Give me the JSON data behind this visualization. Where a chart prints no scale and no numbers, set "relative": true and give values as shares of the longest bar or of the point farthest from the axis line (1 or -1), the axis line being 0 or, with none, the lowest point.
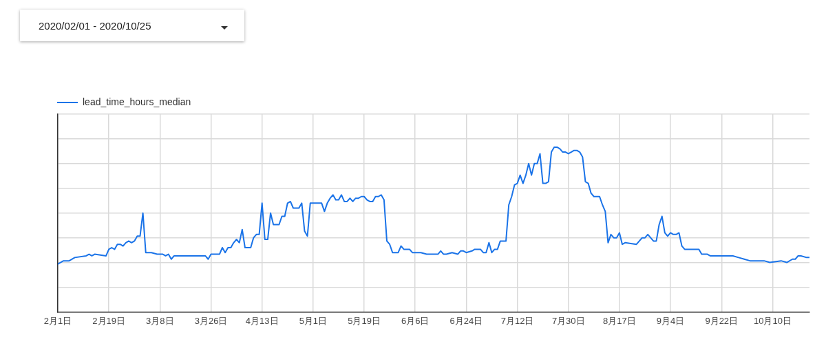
{
  "chart_data": {
    "type": "line",
    "annotations": [
      "2020/02/01 - 2020/10/25"
    ],
    "relative": true,
    "grid": true,
    "legend": "top left",
    "xlim": [
      "2020-02-01",
      "2020-10-23"
    ],
    "xticks": [
      {
        "value": "2020-02-01",
        "label": "2月1日"
      },
      {
        "value": "2020-02-19",
        "label": "2月19日"
      },
      {
        "value": "2020-03-08",
        "label": "3月8日"
      },
      {
        "value": "2020-03-26",
        "label": "3月26日"
      },
      {
        "value": "2020-04-13",
        "label": "4月13日"
      },
      {
        "value": "2020-05-01",
        "label": "5月1日"
      },
      {
        "value": "2020-05-19",
        "label": "5月19日"
      },
      {
        "value": "2020-06-06",
        "label": "6月6日"
      },
      {
        "value": "2020-06-24",
        "label": "6月24日"
      },
      {
        "value": "2020-07-12",
        "label": "7月12日"
      },
      {
        "value": "2020-07-30",
        "label": "7月30日"
      },
      {
        "value": "2020-08-17",
        "label": "8月17日"
      },
      {
        "value": "2020-09-04",
        "label": "9月4日"
      },
      {
        "value": "2020-09-22",
        "label": "9月22日"
      },
      {
        "value": "2020-10-10",
        "label": "10月10日"
      }
    ],
    "x": [
      "2020-02-01",
      "2020-02-03",
      "2020-02-05",
      "2020-02-07",
      "2020-02-11",
      "2020-02-12",
      "2020-02-13",
      "2020-02-14",
      "2020-02-18",
      "2020-02-19",
      "2020-02-20",
      "2020-02-21",
      "2020-02-22",
      "2020-02-23",
      "2020-02-24",
      "2020-02-25",
      "2020-02-26",
      "2020-02-27",
      "2020-02-28",
      "2020-02-29",
      "2020-03-01",
      "2020-03-02",
      "2020-03-03",
      "2020-03-05",
      "2020-03-07",
      "2020-03-09",
      "2020-03-10",
      "2020-03-11",
      "2020-03-12",
      "2020-03-13",
      "2020-03-17",
      "2020-03-21",
      "2020-03-24",
      "2020-03-25",
      "2020-03-26",
      "2020-03-29",
      "2020-03-30",
      "2020-03-31",
      "2020-04-01",
      "2020-04-02",
      "2020-04-03",
      "2020-04-04",
      "2020-04-05",
      "2020-04-06",
      "2020-04-07",
      "2020-04-09",
      "2020-04-10",
      "2020-04-11",
      "2020-04-12",
      "2020-04-13",
      "2020-04-14",
      "2020-04-15",
      "2020-04-16",
      "2020-04-17",
      "2020-04-19",
      "2020-04-20",
      "2020-04-21",
      "2020-04-22",
      "2020-04-23",
      "2020-04-24",
      "2020-04-26",
      "2020-04-27",
      "2020-04-28",
      "2020-04-29",
      "2020-04-30",
      "2020-05-01",
      "2020-05-04",
      "2020-05-05",
      "2020-05-06",
      "2020-05-07",
      "2020-05-08",
      "2020-05-09",
      "2020-05-10",
      "2020-05-11",
      "2020-05-12",
      "2020-05-13",
      "2020-05-14",
      "2020-05-15",
      "2020-05-16",
      "2020-05-17",
      "2020-05-18",
      "2020-05-19",
      "2020-05-20",
      "2020-05-21",
      "2020-05-22",
      "2020-05-23",
      "2020-05-24",
      "2020-05-25",
      "2020-05-26",
      "2020-05-27",
      "2020-05-28",
      "2020-05-29",
      "2020-05-31",
      "2020-06-01",
      "2020-06-02",
      "2020-06-04",
      "2020-06-05",
      "2020-06-08",
      "2020-06-10",
      "2020-06-14",
      "2020-06-15",
      "2020-06-16",
      "2020-06-17",
      "2020-06-19",
      "2020-06-21",
      "2020-06-22",
      "2020-06-23",
      "2020-06-24",
      "2020-06-26",
      "2020-06-27",
      "2020-06-29",
      "2020-06-30",
      "2020-07-01",
      "2020-07-02",
      "2020-07-03",
      "2020-07-04",
      "2020-07-05",
      "2020-07-06",
      "2020-07-08",
      "2020-07-09",
      "2020-07-10",
      "2020-07-11",
      "2020-07-12",
      "2020-07-13",
      "2020-07-14",
      "2020-07-15",
      "2020-07-16",
      "2020-07-17",
      "2020-07-18",
      "2020-07-19",
      "2020-07-20",
      "2020-07-21",
      "2020-07-22",
      "2020-07-23",
      "2020-07-24",
      "2020-07-25",
      "2020-07-26",
      "2020-07-27",
      "2020-07-28",
      "2020-07-29",
      "2020-07-30",
      "2020-07-31",
      "2020-08-01",
      "2020-08-02",
      "2020-08-03",
      "2020-08-04",
      "2020-08-05",
      "2020-08-06",
      "2020-08-07",
      "2020-08-08",
      "2020-08-10",
      "2020-08-11",
      "2020-08-12",
      "2020-08-13",
      "2020-08-14",
      "2020-08-15",
      "2020-08-16",
      "2020-08-17",
      "2020-08-18",
      "2020-08-19",
      "2020-08-23",
      "2020-08-24",
      "2020-08-25",
      "2020-08-26",
      "2020-08-27",
      "2020-08-28",
      "2020-08-29",
      "2020-08-30",
      "2020-08-31",
      "2020-09-01",
      "2020-09-02",
      "2020-09-03",
      "2020-09-04",
      "2020-09-05",
      "2020-09-06",
      "2020-09-07",
      "2020-09-08",
      "2020-09-09",
      "2020-09-10",
      "2020-09-14",
      "2020-09-15",
      "2020-09-17",
      "2020-09-18",
      "2020-09-26",
      "2020-09-28",
      "2020-09-30",
      "2020-10-02",
      "2020-10-04",
      "2020-10-07",
      "2020-10-09",
      "2020-10-13",
      "2020-10-15",
      "2020-10-17",
      "2020-10-18",
      "2020-10-19",
      "2020-10-20",
      "2020-10-22",
      "2020-10-23"
    ],
    "series": [
      {
        "name": "lead_time_hours_median",
        "color": "#1a73e8",
        "values": [
          0.29,
          0.31,
          0.31,
          0.33,
          0.34,
          0.35,
          0.34,
          0.35,
          0.34,
          0.38,
          0.39,
          0.38,
          0.41,
          0.41,
          0.4,
          0.42,
          0.43,
          0.42,
          0.43,
          0.46,
          0.46,
          0.6,
          0.36,
          0.36,
          0.35,
          0.35,
          0.34,
          0.35,
          0.32,
          0.34,
          0.34,
          0.34,
          0.34,
          0.32,
          0.35,
          0.35,
          0.39,
          0.36,
          0.39,
          0.39,
          0.42,
          0.44,
          0.42,
          0.5,
          0.39,
          0.39,
          0.45,
          0.47,
          0.47,
          0.66,
          0.44,
          0.44,
          0.6,
          0.53,
          0.53,
          0.58,
          0.58,
          0.66,
          0.67,
          0.63,
          0.63,
          0.66,
          0.49,
          0.46,
          0.66,
          0.66,
          0.66,
          0.61,
          0.66,
          0.69,
          0.71,
          0.68,
          0.68,
          0.71,
          0.67,
          0.67,
          0.69,
          0.67,
          0.69,
          0.69,
          0.7,
          0.7,
          0.68,
          0.67,
          0.67,
          0.7,
          0.7,
          0.71,
          0.68,
          0.43,
          0.41,
          0.36,
          0.36,
          0.4,
          0.38,
          0.38,
          0.36,
          0.36,
          0.35,
          0.35,
          0.37,
          0.35,
          0.35,
          0.36,
          0.35,
          0.37,
          0.37,
          0.36,
          0.37,
          0.38,
          0.38,
          0.36,
          0.36,
          0.42,
          0.36,
          0.38,
          0.38,
          0.43,
          0.43,
          0.65,
          0.7,
          0.77,
          0.78,
          0.83,
          0.78,
          0.83,
          0.9,
          0.83,
          0.9,
          0.9,
          0.96,
          0.78,
          0.78,
          0.79,
          0.97,
          1,
          1,
          0.99,
          0.97,
          0.97,
          0.96,
          0.97,
          0.98,
          0.98,
          0.97,
          0.94,
          0.79,
          0.78,
          0.72,
          0.7,
          0.7,
          0.65,
          0.61,
          0.42,
          0.47,
          0.45,
          0.45,
          0.48,
          0.41,
          0.42,
          0.41,
          0.43,
          0.45,
          0.45,
          0.47,
          0.45,
          0.43,
          0.43,
          0.53,
          0.58,
          0.48,
          0.46,
          0.48,
          0.47,
          0.47,
          0.48,
          0.4,
          0.38,
          0.38,
          0.38,
          0.35,
          0.35,
          0.34,
          0.34,
          0.33,
          0.32,
          0.31,
          0.31,
          0.31,
          0.3,
          0.31,
          0.3,
          0.32,
          0.32,
          0.34,
          0.34,
          0.33,
          0.33
        ]
      }
    ]
  }
}
